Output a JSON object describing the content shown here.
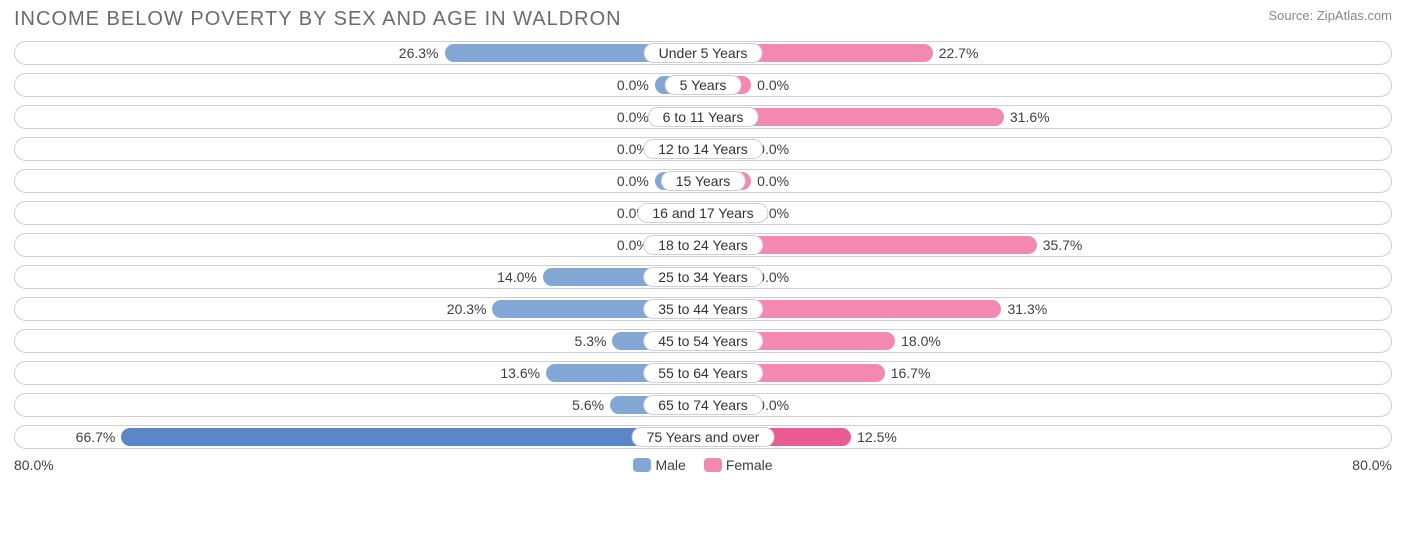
{
  "title": "INCOME BELOW POVERTY BY SEX AND AGE IN WALDRON",
  "source": "Source: ZipAtlas.com",
  "axis_max_label": "80.0%",
  "axis_max": 80.0,
  "colors": {
    "male_bar": "#83a7d4",
    "male_bar_hi": "#5b87c7",
    "female_bar": "#f388b1",
    "female_bar_hi": "#ea5a93",
    "row_border": "#cfcfcf",
    "background": "#ffffff",
    "text": "#404040",
    "title_text": "#6b6b6b"
  },
  "legend": {
    "male": "Male",
    "female": "Female"
  },
  "base_bar_pct": 7.0,
  "rows": [
    {
      "category": "Under 5 Years",
      "male": 26.3,
      "female": 22.7,
      "male_label": "26.3%",
      "female_label": "22.7%",
      "highlight": false
    },
    {
      "category": "5 Years",
      "male": 0.0,
      "female": 0.0,
      "male_label": "0.0%",
      "female_label": "0.0%",
      "highlight": false
    },
    {
      "category": "6 to 11 Years",
      "male": 0.0,
      "female": 31.6,
      "male_label": "0.0%",
      "female_label": "31.6%",
      "highlight": false
    },
    {
      "category": "12 to 14 Years",
      "male": 0.0,
      "female": 0.0,
      "male_label": "0.0%",
      "female_label": "0.0%",
      "highlight": false
    },
    {
      "category": "15 Years",
      "male": 0.0,
      "female": 0.0,
      "male_label": "0.0%",
      "female_label": "0.0%",
      "highlight": false
    },
    {
      "category": "16 and 17 Years",
      "male": 0.0,
      "female": 0.0,
      "male_label": "0.0%",
      "female_label": "0.0%",
      "highlight": false
    },
    {
      "category": "18 to 24 Years",
      "male": 0.0,
      "female": 35.7,
      "male_label": "0.0%",
      "female_label": "35.7%",
      "highlight": false
    },
    {
      "category": "25 to 34 Years",
      "male": 14.0,
      "female": 0.0,
      "male_label": "14.0%",
      "female_label": "0.0%",
      "highlight": false
    },
    {
      "category": "35 to 44 Years",
      "male": 20.3,
      "female": 31.3,
      "male_label": "20.3%",
      "female_label": "31.3%",
      "highlight": false
    },
    {
      "category": "45 to 54 Years",
      "male": 5.3,
      "female": 18.0,
      "male_label": "5.3%",
      "female_label": "18.0%",
      "highlight": false
    },
    {
      "category": "55 to 64 Years",
      "male": 13.6,
      "female": 16.7,
      "male_label": "13.6%",
      "female_label": "16.7%",
      "highlight": false
    },
    {
      "category": "65 to 74 Years",
      "male": 5.6,
      "female": 0.0,
      "male_label": "5.6%",
      "female_label": "0.0%",
      "highlight": false
    },
    {
      "category": "75 Years and over",
      "male": 66.7,
      "female": 12.5,
      "male_label": "66.7%",
      "female_label": "12.5%",
      "highlight": true
    }
  ]
}
